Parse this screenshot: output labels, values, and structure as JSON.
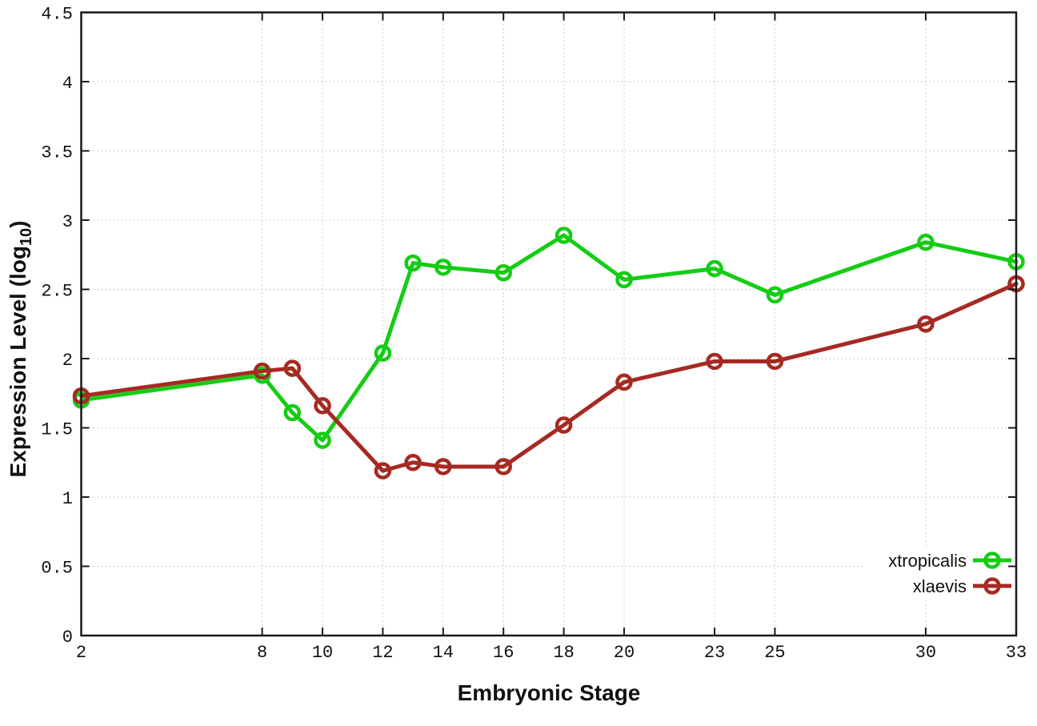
{
  "chart_data": {
    "type": "line",
    "title": "",
    "xlabel": "Embryonic Stage",
    "ylabel": "Expression Level (log10)",
    "ylabel_parts": {
      "prefix": "Expression Level (log",
      "subscript": "10",
      "suffix": ")"
    },
    "x": [
      2,
      8,
      9,
      10,
      12,
      13,
      14,
      16,
      18,
      20,
      23,
      25,
      30,
      33
    ],
    "x_ticks": [
      2,
      8,
      10,
      12,
      14,
      16,
      18,
      20,
      23,
      25,
      30,
      33
    ],
    "y_ticks": [
      0,
      0.5,
      1,
      1.5,
      2,
      2.5,
      3,
      3.5,
      4,
      4.5
    ],
    "xlim": [
      2,
      33
    ],
    "ylim": [
      0,
      4.5
    ],
    "grid": true,
    "legend_position": "bottom-right",
    "series": [
      {
        "name": "xtropicalis",
        "color": "#15cc15",
        "marker": "open-circle",
        "values": [
          1.7,
          1.88,
          1.61,
          1.41,
          2.04,
          2.69,
          2.66,
          2.62,
          2.89,
          2.57,
          2.65,
          2.46,
          2.84,
          2.7
        ]
      },
      {
        "name": "xlaevis",
        "color": "#a52a22",
        "marker": "open-circle",
        "values": [
          1.73,
          1.91,
          1.93,
          1.66,
          1.19,
          1.25,
          1.22,
          1.22,
          1.52,
          1.83,
          1.98,
          1.98,
          2.25,
          2.54
        ]
      }
    ],
    "styles": {
      "grid_color": "#bcbcbc",
      "border_color": "#1a1a1a",
      "tick_label_color": "#111111"
    }
  }
}
